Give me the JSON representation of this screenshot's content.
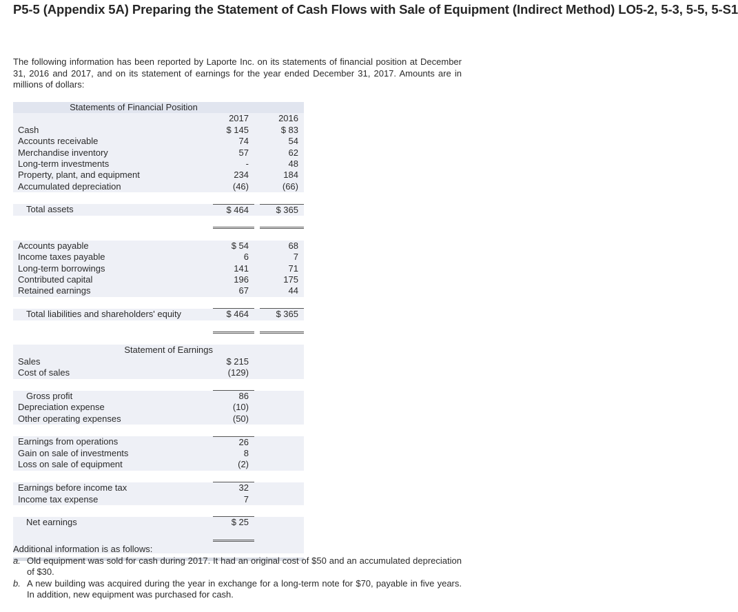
{
  "heading": "P5-5 (Appendix 5A) Preparing the Statement of Cash Flows with Sale of Equipment (Indirect Method) LO5-2, 5-3, 5-5, 5-S1",
  "intro": "The following information has been reported by Laporte Inc. on its statements of financial position at December 31, 2016 and 2017, and on its statement of earnings for the year ended December 31, 2017. Amounts are in millions of dollars:",
  "sfp": {
    "title": "Statements of Financial Position",
    "year1": "2017",
    "year2": "2016",
    "assets": [
      {
        "label": "Cash",
        "v2017": "$ 145",
        "v2016": "$  83"
      },
      {
        "label": "Accounts receivable",
        "v2017": "74",
        "v2016": "54"
      },
      {
        "label": "Merchandise inventory",
        "v2017": "57",
        "v2016": "62"
      },
      {
        "label": "Long-term investments",
        "v2017": "-",
        "v2016": "48"
      },
      {
        "label": "Property, plant, and equipment",
        "v2017": "234",
        "v2016": "184"
      },
      {
        "label": "Accumulated depreciation",
        "v2017": "(46)",
        "v2016": "(66)"
      }
    ],
    "total_assets": {
      "label": "Total assets",
      "v2017": "$ 464",
      "v2016": "$ 365"
    },
    "liabilities": [
      {
        "label": "Accounts payable",
        "v2017": "$  54",
        "v2016": "68"
      },
      {
        "label": "Income taxes payable",
        "v2017": "6",
        "v2016": "7"
      },
      {
        "label": "Long-term borrowings",
        "v2017": "141",
        "v2016": "71"
      },
      {
        "label": "Contributed capital",
        "v2017": "196",
        "v2016": "175"
      },
      {
        "label": "Retained earnings",
        "v2017": "67",
        "v2016": "44"
      }
    ],
    "total_liab": {
      "label": "Total liabilities and shareholders' equity",
      "v2017": "$ 464",
      "v2016": "$ 365"
    }
  },
  "soe": {
    "title": "Statement of Earnings",
    "sales": {
      "label": "Sales",
      "v": "$ 215"
    },
    "cost_of_sales": {
      "label": "Cost of sales",
      "v": "(129)"
    },
    "gross_profit": {
      "label": "Gross profit",
      "v": "86"
    },
    "depreciation": {
      "label": "Depreciation expense",
      "v": "(10)"
    },
    "other_opex": {
      "label": "Other operating expenses",
      "v": "(50)"
    },
    "earnings_ops": {
      "label": "Earnings from operations",
      "v": "26"
    },
    "gain_invest": {
      "label": "Gain on sale of investments",
      "v": "8"
    },
    "loss_equip": {
      "label": "Loss on sale of equipment",
      "v": "(2)"
    },
    "ebt": {
      "label": "Earnings before income tax",
      "v": "32"
    },
    "tax": {
      "label": "Income tax expense",
      "v": "7"
    },
    "net": {
      "label": "Net earnings",
      "v": "$  25"
    }
  },
  "additional": {
    "heading": "Additional information is as follows:",
    "items": [
      {
        "mark": "a.",
        "text": "Old equipment was sold for cash during 2017. It had an original cost of $50 and an accumulated depreciation of $30."
      },
      {
        "mark": "b.",
        "text": "A new building was acquired during the year in exchange for a long-term note for $70, payable in five years. In addition, new equipment was purchased for cash."
      }
    ]
  }
}
